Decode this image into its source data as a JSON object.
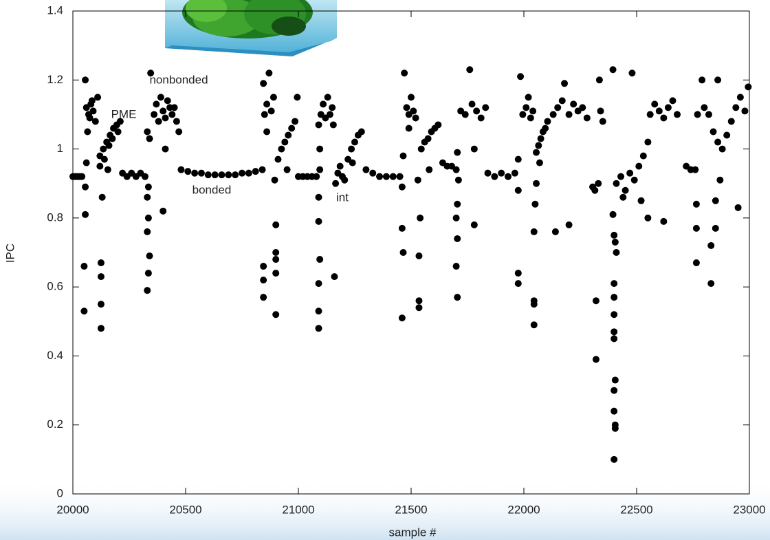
{
  "chart_data": {
    "type": "scatter",
    "x_label": "sample #",
    "y_label": "IPC",
    "annotations": [
      "nonbonded",
      "PME",
      "bonded",
      "int"
    ],
    "color": "#000000",
    "xlim": [
      20000,
      23000
    ],
    "xticks": [
      20000,
      20500,
      21000,
      21500,
      22000,
      22500,
      23000
    ],
    "ylim": [
      0,
      1.4
    ],
    "yticks": [
      0,
      0.2,
      0.4,
      0.6,
      0.8,
      1,
      1.2,
      1.4
    ],
    "x": [
      20000,
      20010,
      20020,
      20030,
      20040,
      20055,
      20060,
      20070,
      20080,
      20090,
      20100,
      20110,
      20065,
      20075,
      20085,
      20050,
      20050,
      20055,
      20055,
      20060,
      20125,
      20125,
      20125,
      20125,
      20130,
      20120,
      20120,
      20135,
      20150,
      20165,
      20180,
      20195,
      20210,
      20140,
      20160,
      20175,
      20200,
      20155,
      20220,
      20240,
      20260,
      20280,
      20300,
      20320,
      20330,
      20335,
      20340,
      20330,
      20335,
      20330,
      20335,
      20340,
      20345,
      20330,
      20360,
      20370,
      20380,
      20390,
      20400,
      20410,
      20420,
      20430,
      20440,
      20450,
      20460,
      20400,
      20410,
      20470,
      20480,
      20510,
      20540,
      20570,
      20600,
      20630,
      20660,
      20690,
      20720,
      20750,
      20780,
      20810,
      20840,
      20845,
      20850,
      20860,
      20870,
      20880,
      20890,
      20860,
      20845,
      20845,
      20845,
      20900,
      20900,
      20900,
      20900,
      20900,
      20895,
      20910,
      20925,
      20940,
      20955,
      20970,
      20985,
      20995,
      20950,
      21000,
      21020,
      21040,
      21060,
      21080,
      21090,
      21090,
      21090,
      21095,
      21090,
      21090,
      21095,
      21095,
      21090,
      21100,
      21110,
      21120,
      21130,
      21140,
      21150,
      21155,
      21160,
      21165,
      21175,
      21185,
      21195,
      21205,
      21220,
      21235,
      21250,
      21265,
      21280,
      21240,
      21300,
      21330,
      21360,
      21390,
      21420,
      21450,
      21460,
      21465,
      21460,
      21460,
      21465,
      21470,
      21480,
      21490,
      21500,
      21510,
      21520,
      21490,
      21535,
      21535,
      21535,
      21540,
      21530,
      21545,
      21560,
      21575,
      21590,
      21605,
      21620,
      21580,
      21640,
      21660,
      21680,
      21700,
      21705,
      21700,
      21705,
      21700,
      21705,
      21710,
      21705,
      21720,
      21740,
      21760,
      21770,
      21790,
      21810,
      21830,
      21780,
      21780,
      21840,
      21870,
      21900,
      21930,
      21960,
      21975,
      21975,
      21975,
      21975,
      21985,
      21995,
      22010,
      22020,
      22030,
      22040,
      22045,
      22045,
      22045,
      22045,
      22050,
      22055,
      22055,
      22065,
      22075,
      22085,
      22095,
      22105,
      22070,
      22140,
      22200,
      22130,
      22150,
      22170,
      22180,
      22200,
      22220,
      22240,
      22260,
      22280,
      22305,
      22315,
      22330,
      22320,
      22320,
      22335,
      22340,
      22350,
      22400,
      22405,
      22405,
      22400,
      22400,
      22405,
      22400,
      22400,
      22400,
      22400,
      22400,
      22410,
      22405,
      22400,
      22395,
      22395,
      22410,
      22430,
      22450,
      22470,
      22490,
      22510,
      22530,
      22550,
      22440,
      22480,
      22520,
      22550,
      22560,
      22580,
      22600,
      22620,
      22640,
      22660,
      22680,
      22620,
      22720,
      22740,
      22760,
      22765,
      22765,
      22765,
      22770,
      22790,
      22800,
      22820,
      22840,
      22860,
      22880,
      22900,
      22920,
      22940,
      22960,
      22980,
      22995,
      22830,
      22830,
      22850,
      22850,
      22870,
      22950,
      22860
    ],
    "values": [
      0.92,
      0.92,
      0.92,
      0.92,
      0.92,
      1.2,
      1.12,
      1.1,
      1.13,
      1.11,
      1.08,
      1.15,
      1.05,
      1.09,
      1.14,
      0.53,
      0.66,
      0.81,
      0.89,
      0.96,
      0.48,
      0.55,
      0.63,
      0.67,
      0.86,
      0.95,
      0.98,
      1.0,
      1.02,
      1.04,
      1.06,
      1.07,
      1.08,
      0.97,
      1.01,
      1.03,
      1.05,
      0.94,
      0.93,
      0.92,
      0.93,
      0.92,
      0.93,
      0.92,
      0.59,
      0.64,
      0.69,
      0.76,
      0.8,
      0.86,
      0.89,
      1.03,
      1.22,
      1.05,
      1.1,
      1.13,
      1.08,
      1.15,
      1.11,
      1.09,
      1.14,
      1.12,
      1.1,
      1.12,
      1.08,
      0.82,
      1.0,
      1.05,
      0.94,
      0.935,
      0.93,
      0.93,
      0.925,
      0.925,
      0.925,
      0.925,
      0.925,
      0.93,
      0.93,
      0.935,
      0.94,
      1.19,
      1.1,
      1.13,
      1.22,
      1.11,
      1.15,
      1.05,
      0.57,
      0.62,
      0.66,
      0.52,
      0.64,
      0.68,
      0.7,
      0.78,
      0.91,
      0.97,
      1.0,
      1.02,
      1.04,
      1.06,
      1.08,
      1.15,
      0.94,
      0.92,
      0.92,
      0.92,
      0.92,
      0.92,
      0.48,
      0.53,
      0.61,
      0.68,
      0.79,
      0.86,
      0.94,
      1.0,
      1.07,
      1.1,
      1.13,
      1.09,
      1.15,
      1.1,
      1.12,
      1.07,
      0.63,
      0.9,
      0.93,
      0.95,
      0.92,
      0.91,
      0.97,
      1.0,
      1.02,
      1.04,
      1.05,
      0.96,
      0.94,
      0.93,
      0.92,
      0.92,
      0.92,
      0.92,
      0.51,
      0.7,
      0.77,
      0.89,
      0.98,
      1.22,
      1.12,
      1.1,
      1.15,
      1.11,
      1.09,
      1.06,
      0.54,
      0.56,
      0.69,
      0.8,
      0.91,
      1.0,
      1.02,
      1.03,
      1.05,
      1.06,
      1.07,
      0.94,
      0.96,
      0.95,
      0.95,
      0.94,
      0.57,
      0.66,
      0.74,
      0.8,
      0.84,
      0.91,
      0.99,
      1.11,
      1.1,
      1.23,
      1.13,
      1.11,
      1.09,
      1.12,
      1.0,
      0.78,
      0.93,
      0.92,
      0.93,
      0.92,
      0.93,
      0.61,
      0.64,
      0.88,
      0.97,
      1.21,
      1.1,
      1.12,
      1.15,
      1.09,
      1.11,
      0.49,
      0.55,
      0.56,
      0.76,
      0.84,
      0.9,
      0.99,
      1.01,
      1.03,
      1.05,
      1.06,
      1.08,
      0.96,
      0.76,
      0.78,
      1.1,
      1.12,
      1.14,
      1.19,
      1.1,
      1.13,
      1.11,
      1.12,
      1.09,
      0.89,
      0.88,
      0.9,
      0.39,
      0.56,
      1.2,
      1.11,
      1.08,
      0.1,
      0.19,
      0.2,
      0.24,
      0.3,
      0.33,
      0.45,
      0.47,
      0.52,
      0.57,
      0.61,
      0.7,
      0.73,
      0.75,
      0.81,
      1.23,
      0.9,
      0.92,
      0.88,
      0.93,
      0.91,
      0.95,
      0.98,
      1.02,
      0.86,
      1.22,
      0.85,
      0.8,
      1.1,
      1.13,
      1.11,
      1.09,
      1.12,
      1.14,
      1.1,
      0.79,
      0.95,
      0.94,
      0.94,
      0.67,
      0.77,
      0.84,
      1.1,
      1.2,
      1.12,
      1.1,
      1.05,
      1.02,
      1.0,
      1.04,
      1.08,
      1.12,
      1.15,
      1.11,
      1.18,
      0.72,
      0.61,
      0.77,
      0.85,
      0.91,
      0.83,
      1.2
    ]
  }
}
